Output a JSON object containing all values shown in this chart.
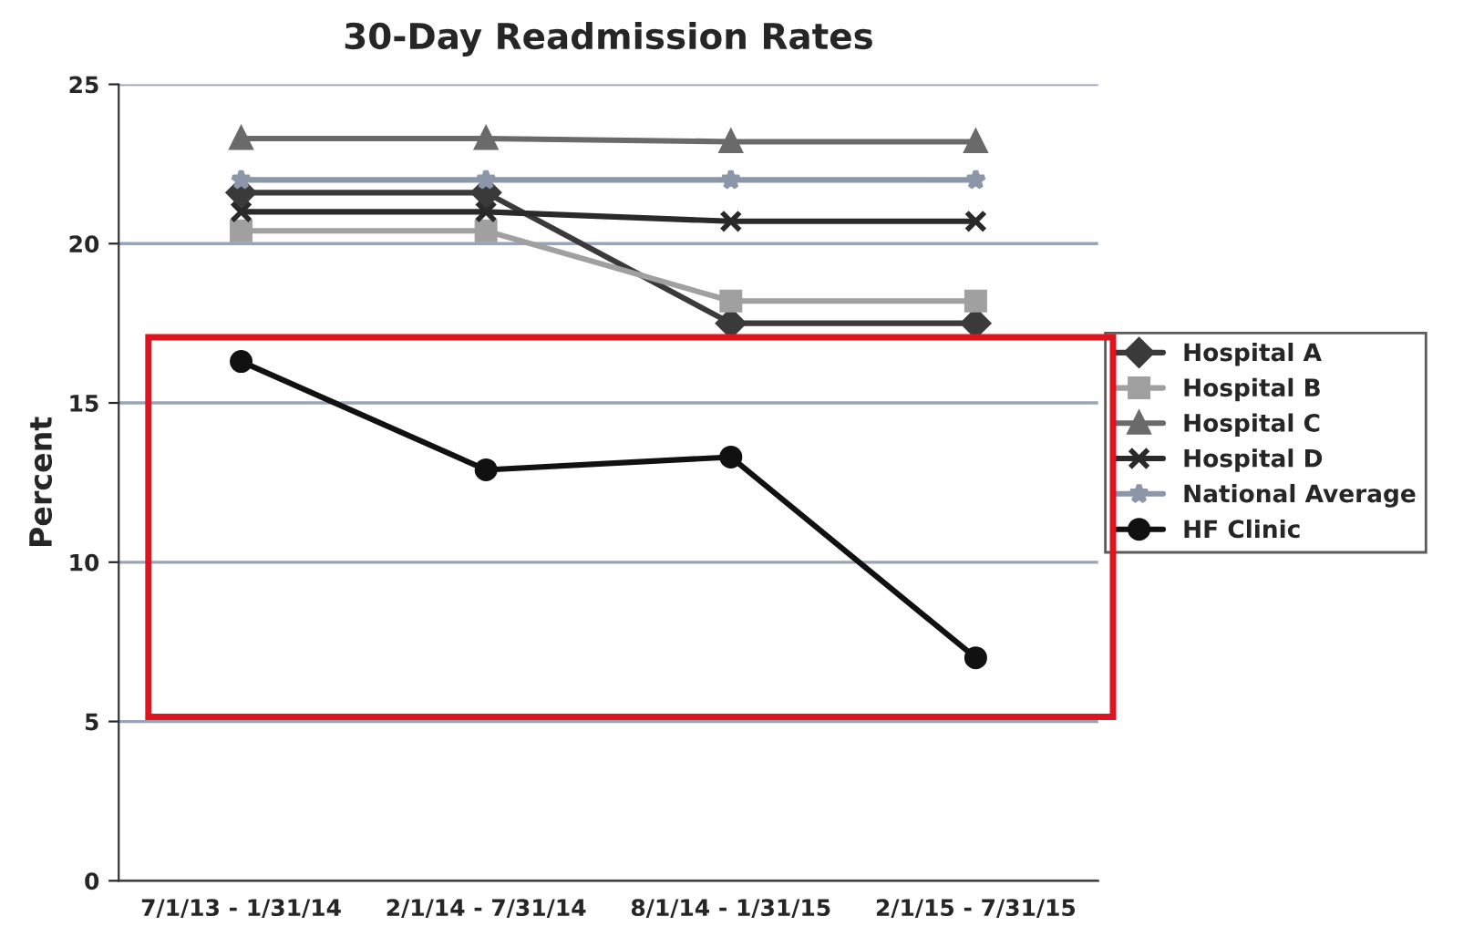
{
  "chart_data": {
    "type": "line",
    "title": "30-Day Readmission Rates",
    "ylabel": "Percent",
    "categories": [
      "7/1/13 - 1/31/14",
      "2/1/14 - 7/31/14",
      "8/1/14 - 1/31/15",
      "2/1/15 - 7/31/15"
    ],
    "series": [
      {
        "name": "Hospital A",
        "color": "#3a3a3a",
        "marker": "diamond",
        "values": [
          21.6,
          21.6,
          17.5,
          17.5
        ]
      },
      {
        "name": "Hospital B",
        "color": "#a0a0a0",
        "marker": "square",
        "values": [
          20.4,
          20.4,
          18.2,
          18.2
        ]
      },
      {
        "name": "Hospital C",
        "color": "#6a6a6a",
        "marker": "triangle",
        "values": [
          23.3,
          23.3,
          23.2,
          23.2
        ]
      },
      {
        "name": "Hospital D",
        "color": "#2a2a2a",
        "marker": "cross",
        "values": [
          21.0,
          21.0,
          20.7,
          20.7
        ]
      },
      {
        "name": "National Average",
        "color": "#8c96a8",
        "marker": "star",
        "values": [
          22.0,
          22.0,
          22.0,
          22.0
        ]
      },
      {
        "name": "HF Clinic",
        "color": "#111111",
        "marker": "circle",
        "values": [
          16.3,
          12.9,
          13.3,
          7.0
        ]
      }
    ],
    "ylim": [
      0,
      25
    ],
    "yticks": [
      0,
      5,
      10,
      15,
      20,
      25
    ],
    "grid": "y",
    "legend": "right"
  }
}
